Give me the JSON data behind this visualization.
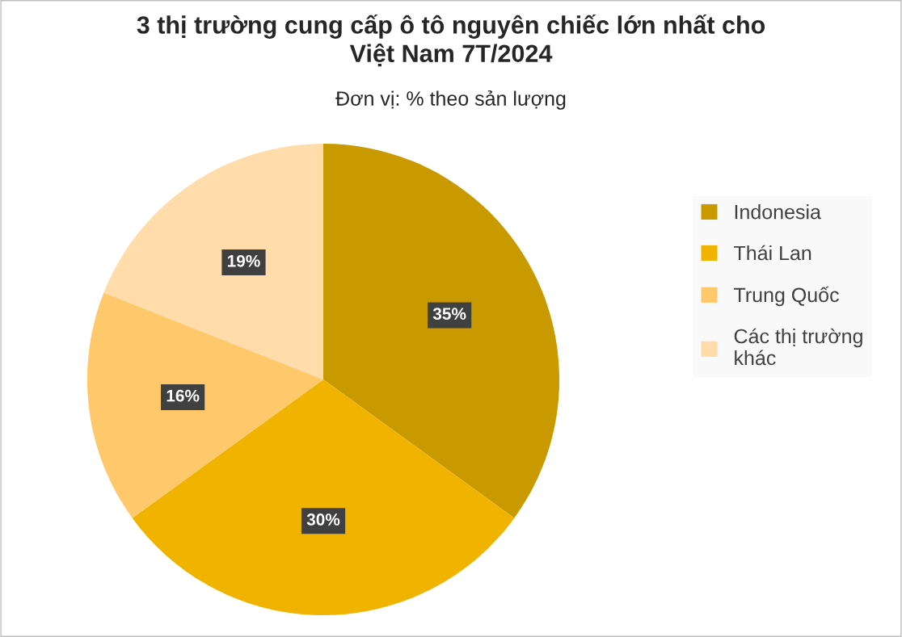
{
  "chart_data": {
    "type": "pie",
    "title": "3 thị trường cung cấp ô tô nguyên chiếc lớn nhất cho\nViệt Nam 7T/2024",
    "subtitle": "Đơn vị: % theo sản lượng",
    "categories": [
      "Indonesia",
      "Thái Lan",
      "Trung Quốc",
      "Các thị trường khác"
    ],
    "values": [
      35,
      30,
      16,
      19
    ],
    "colors": [
      "#c99a00",
      "#f0b400",
      "#ffc96b",
      "#ffdcaa"
    ],
    "value_labels": [
      "35%",
      "30%",
      "16%",
      "19%"
    ],
    "legend": "right"
  }
}
